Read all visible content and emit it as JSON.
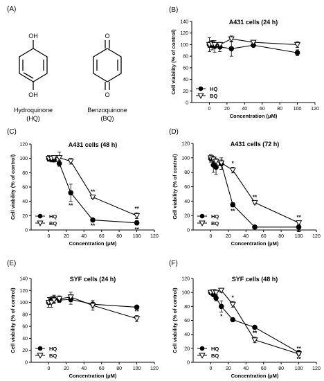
{
  "panel_a": {
    "label": "(A)",
    "compounds": [
      {
        "name": "Hydroquinone",
        "abbr": "(HQ)",
        "top_group": "OH",
        "bottom_group": "OH"
      },
      {
        "name": "Benzoquinone",
        "abbr": "(BQ)",
        "top_group": "O",
        "bottom_group": "O"
      }
    ]
  },
  "chart_data": [
    {
      "panel": "(B)",
      "type": "line",
      "title": "A431 cells (24 h)",
      "xlabel": "Concentration (μM)",
      "ylabel": "Cell viability (% of control)",
      "xlim": [
        -20,
        120
      ],
      "ylim": [
        0,
        140
      ],
      "xticks": [
        0,
        20,
        40,
        60,
        80,
        100,
        120
      ],
      "yticks": [
        0,
        20,
        40,
        60,
        80,
        100,
        120,
        140
      ],
      "legend_position": "bottom-left",
      "series": [
        {
          "name": "HQ",
          "marker": "filled-circle",
          "x": [
            0,
            3,
            6,
            12,
            25,
            50,
            100
          ],
          "y": [
            100,
            99,
            97,
            96,
            93,
            99,
            86
          ],
          "err": [
            5,
            8,
            10,
            8,
            13,
            3,
            5
          ],
          "stars": [
            "",
            "",
            "",
            "",
            "",
            "",
            ""
          ]
        },
        {
          "name": "BQ",
          "marker": "open-triangle",
          "x": [
            0,
            3,
            6,
            12,
            25,
            50,
            100
          ],
          "y": [
            100,
            101,
            100,
            100,
            110,
            104,
            100
          ],
          "err": [
            12,
            5,
            4,
            3,
            5,
            3,
            5
          ],
          "stars": [
            "",
            "",
            "",
            "",
            "",
            "",
            ""
          ]
        }
      ]
    },
    {
      "panel": "(C)",
      "type": "line",
      "title": "A431 cells (48 h)",
      "xlabel": "Concentration (μM)",
      "ylabel": "Cell viability (% of control)",
      "xlim": [
        -20,
        120
      ],
      "ylim": [
        0,
        120
      ],
      "xticks": [
        0,
        20,
        40,
        60,
        80,
        100,
        120
      ],
      "yticks": [
        0,
        20,
        40,
        60,
        80,
        100,
        120
      ],
      "legend_position": "bottom-left",
      "series": [
        {
          "name": "HQ",
          "marker": "filled-circle",
          "x": [
            0,
            3,
            6,
            12,
            25,
            50,
            100
          ],
          "y": [
            100,
            99,
            98,
            93,
            52,
            14,
            10
          ],
          "err": [
            4,
            4,
            3,
            4,
            12,
            2,
            3
          ],
          "stars": [
            "",
            "",
            "",
            "",
            "**",
            "**",
            "**"
          ]
        },
        {
          "name": "BQ",
          "marker": "open-triangle",
          "x": [
            0,
            3,
            6,
            12,
            25,
            50,
            100
          ],
          "y": [
            100,
            100,
            101,
            101,
            96,
            46,
            20
          ],
          "err": [
            3,
            3,
            2,
            8,
            4,
            2,
            4
          ],
          "stars": [
            "",
            "",
            "",
            "",
            "",
            "**",
            "**"
          ]
        }
      ]
    },
    {
      "panel": "(D)",
      "type": "line",
      "title": "A431 cells (72 h)",
      "xlabel": "Concentration (μM)",
      "ylabel": "Cell viability (% of control)",
      "xlim": [
        -20,
        120
      ],
      "ylim": [
        0,
        120
      ],
      "xticks": [
        0,
        20,
        40,
        60,
        80,
        100,
        120
      ],
      "yticks": [
        0,
        20,
        40,
        60,
        80,
        100,
        120
      ],
      "legend_position": "bottom-left",
      "series": [
        {
          "name": "HQ",
          "marker": "filled-circle",
          "x": [
            0,
            3,
            6,
            12,
            25,
            50,
            100
          ],
          "y": [
            99,
            90,
            87,
            92,
            35,
            4,
            4
          ],
          "err": [
            5,
            10,
            10,
            8,
            3,
            1,
            1
          ],
          "stars": [
            "",
            "",
            "",
            "",
            "**",
            "",
            "**"
          ]
        },
        {
          "name": "BQ",
          "marker": "open-triangle",
          "x": [
            0,
            3,
            6,
            12,
            25,
            50,
            100
          ],
          "y": [
            100,
            98,
            95,
            93,
            83,
            38,
            10
          ],
          "err": [
            4,
            4,
            4,
            4,
            4,
            2,
            2
          ],
          "stars": [
            "",
            "",
            "",
            "",
            "*",
            "**",
            "**"
          ]
        }
      ]
    },
    {
      "panel": "(E)",
      "type": "line",
      "title": "SYF cells (24 h)",
      "xlabel": "Concentration (μM)",
      "ylabel": "Cell viability (% of control)",
      "xlim": [
        -20,
        120
      ],
      "ylim": [
        0,
        140
      ],
      "xticks": [
        0,
        20,
        40,
        60,
        80,
        100,
        120
      ],
      "yticks": [
        0,
        20,
        40,
        60,
        80,
        100,
        120,
        140
      ],
      "legend_position": "bottom-left",
      "series": [
        {
          "name": "HQ",
          "marker": "filled-circle",
          "x": [
            0,
            3,
            6,
            12,
            25,
            50,
            100
          ],
          "y": [
            100,
            104,
            106,
            104,
            105,
            97,
            92
          ],
          "err": [
            8,
            6,
            6,
            4,
            8,
            6,
            2
          ],
          "stars": [
            "",
            "",
            "",
            "",
            "",
            "",
            ""
          ]
        },
        {
          "name": "BQ",
          "marker": "open-triangle",
          "x": [
            0,
            3,
            6,
            12,
            25,
            50,
            100
          ],
          "y": [
            100,
            100,
            104,
            106,
            109,
            95,
            73
          ],
          "err": [
            8,
            8,
            6,
            5,
            8,
            8,
            5
          ],
          "stars": [
            "",
            "",
            "",
            "",
            "",
            "",
            "**"
          ]
        }
      ]
    },
    {
      "panel": "(F)",
      "type": "line",
      "title": "SYF cells (48 h)",
      "xlabel": "Concentration (μM)",
      "ylabel": "Cell viability (% of control)",
      "xlim": [
        -20,
        120
      ],
      "ylim": [
        0,
        120
      ],
      "xticks": [
        0,
        20,
        40,
        60,
        80,
        100,
        120
      ],
      "yticks": [
        0,
        20,
        40,
        60,
        80,
        100,
        120
      ],
      "legend_position": "bottom-left",
      "series": [
        {
          "name": "HQ",
          "marker": "filled-circle",
          "x": [
            0,
            3,
            6,
            12,
            25,
            50,
            100
          ],
          "y": [
            100,
            97,
            92,
            80,
            61,
            50,
            14
          ],
          "err": [
            3,
            3,
            4,
            8,
            2,
            2,
            3
          ],
          "stars": [
            "",
            "",
            "",
            "*",
            "",
            "**",
            "**"
          ]
        },
        {
          "name": "BQ",
          "marker": "open-triangle",
          "x": [
            0,
            3,
            6,
            12,
            25,
            50,
            100
          ],
          "y": [
            100,
            101,
            100,
            103,
            83,
            32,
            12
          ],
          "err": [
            3,
            3,
            3,
            3,
            4,
            4,
            2
          ],
          "stars": [
            "",
            "",
            "",
            "",
            "*",
            "**",
            "**"
          ]
        }
      ]
    }
  ]
}
